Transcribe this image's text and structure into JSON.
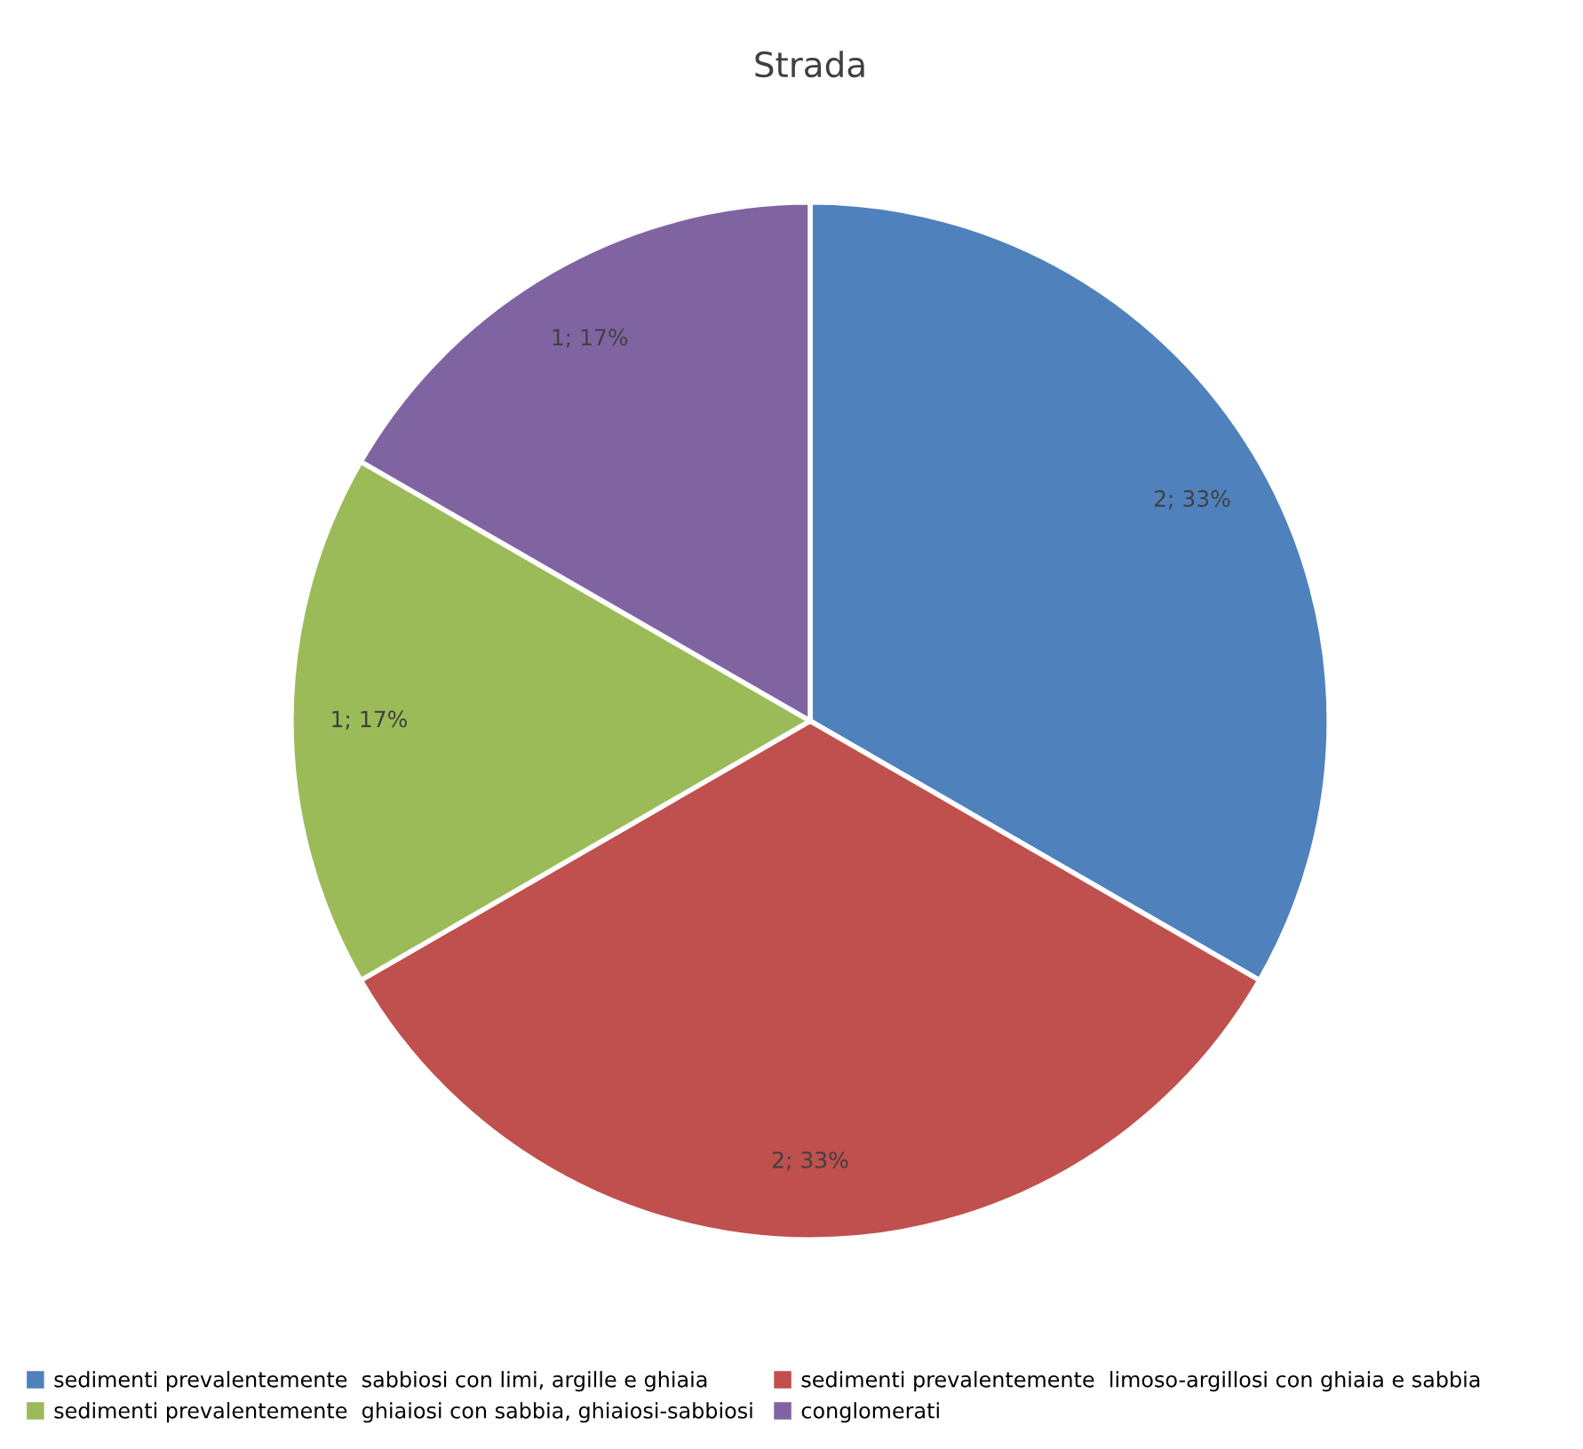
{
  "chart_data": {
    "type": "pie",
    "title": "Strada",
    "categories": [
      "sedimenti prevalentemente  sabbiosi con limi, argille e ghiaia",
      "sedimenti prevalentemente  limoso-argillosi con ghiaia e sabbia",
      "sedimenti prevalentemente  ghiaiosi con sabbia, ghiaiosi-sabbiosi",
      "conglomerati"
    ],
    "values": [
      2,
      2,
      1,
      1
    ],
    "value_labels": [
      "2; 33%",
      "2; 33%",
      "1; 17%",
      "1; 17%"
    ],
    "colors": [
      "#4f81bd",
      "#c0504d",
      "#9bbb59",
      "#8064a2"
    ],
    "legend": "bottom"
  }
}
